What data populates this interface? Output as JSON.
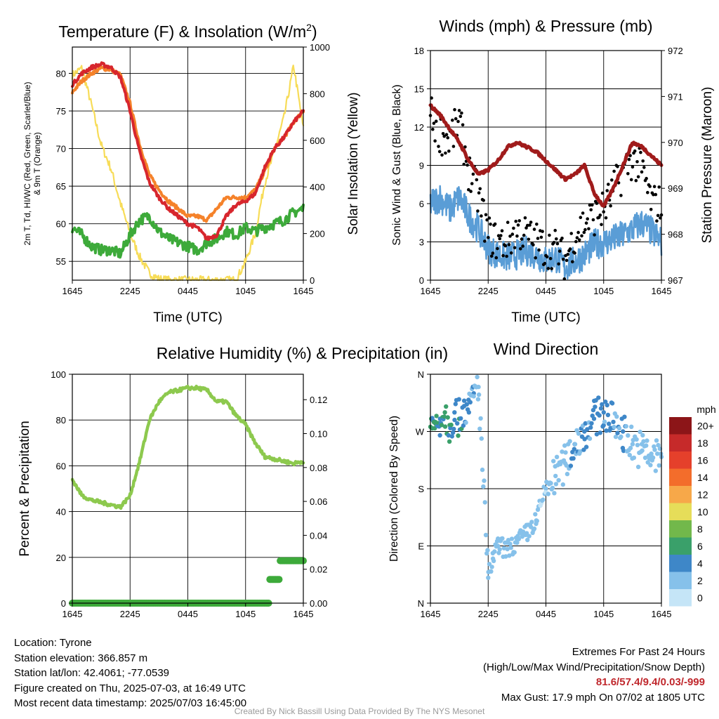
{
  "colors": {
    "temp": "#d7262d",
    "dewpoint": "#3daa3a",
    "heat_index": "#d7262d",
    "temp_9m": "#f5822a",
    "insolation": "#f7dc58",
    "wind": "#5a9dd6",
    "gust": "#000000",
    "pressure": "#a01b1b",
    "rh": "#8dc94e",
    "precip": "#3daa3a"
  },
  "chart_data": [
    {
      "type": "line",
      "title": "Temperature (F) & Insolation (W/m²)",
      "xlabel": "Time (UTC)",
      "ylabel": "2m T, Td, HI/WC (Red, Green, Scarlet/Blue) & 9m T (Orange)",
      "ylabel_lines": [
        "2m T, Td, HI/WC (Red, Green, Scarlet/Blue)",
        "& 9m T (Orange)"
      ],
      "y2label": "Solar Insolation (Yellow)",
      "ylim": [
        52.5,
        83.5
      ],
      "y2lim": [
        0,
        1000
      ],
      "xticks": [
        "1645",
        "2245",
        "0445",
        "1045",
        "1645"
      ],
      "yticks": [
        55,
        60,
        65,
        70,
        75,
        80
      ],
      "y2ticks": [
        0,
        200,
        400,
        600,
        800,
        1000
      ],
      "x_hours_from_start": [
        0,
        1,
        2,
        3,
        4,
        5,
        6,
        7,
        8,
        9,
        10,
        11,
        12,
        13,
        14,
        15,
        16,
        17,
        18,
        19,
        20,
        21,
        22,
        23,
        24
      ],
      "series": [
        {
          "name": "2m T",
          "axis": "left",
          "values": [
            78.5,
            80.0,
            80.8,
            81.2,
            80.8,
            79.5,
            75.0,
            69.5,
            65.5,
            63.5,
            62.0,
            61.0,
            60.0,
            59.5,
            58.0,
            58.5,
            61.0,
            62.5,
            63.0,
            64.0,
            67.5,
            70.0,
            71.5,
            73.5,
            75.0
          ]
        },
        {
          "name": "9m T",
          "axis": "left",
          "values": [
            77.5,
            79.0,
            80.0,
            80.7,
            80.5,
            79.8,
            76.0,
            70.5,
            66.5,
            64.5,
            63.0,
            62.0,
            61.0,
            61.0,
            60.5,
            62.0,
            63.5,
            63.5,
            63.5,
            64.5,
            67.0,
            70.0,
            71.5,
            73.5,
            75.0
          ]
        },
        {
          "name": "Td",
          "axis": "left",
          "values": [
            59.5,
            58.5,
            57.0,
            56.5,
            56.5,
            56.0,
            58.5,
            60.5,
            61.0,
            59.0,
            58.0,
            57.5,
            57.0,
            56.5,
            57.5,
            58.0,
            59.0,
            58.5,
            59.5,
            59.0,
            59.5,
            60.0,
            60.5,
            61.5,
            62.0
          ]
        },
        {
          "name": "Insolation",
          "axis": "right",
          "values": [
            880,
            910,
            750,
            580,
            480,
            330,
            200,
            100,
            30,
            5,
            0,
            0,
            0,
            0,
            0,
            0,
            0,
            0,
            80,
            200,
            420,
            550,
            700,
            920,
            650
          ]
        }
      ]
    },
    {
      "type": "line",
      "title": "Winds (mph) & Pressure (mb)",
      "xlabel": "Time (UTC)",
      "ylabel": "Sonic Wind & Gust (Blue, Black)",
      "y2label": "Station Pressure (Maroon)",
      "ylim": [
        0,
        18
      ],
      "y2lim": [
        967,
        972
      ],
      "xticks": [
        "1645",
        "2245",
        "0445",
        "1045",
        "1645"
      ],
      "yticks": [
        0,
        3,
        6,
        9,
        12,
        15,
        18
      ],
      "y2ticks": [
        967,
        968,
        969,
        970,
        971,
        972
      ],
      "x_hours_from_start": [
        0,
        1,
        2,
        3,
        4,
        5,
        6,
        7,
        8,
        9,
        10,
        11,
        12,
        13,
        14,
        15,
        16,
        17,
        18,
        19,
        20,
        21,
        22,
        23,
        24
      ],
      "series": [
        {
          "name": "Sonic Wind",
          "axis": "left",
          "values": [
            6.0,
            6.5,
            5.5,
            6.5,
            5.0,
            4.0,
            2.5,
            2.0,
            1.8,
            2.0,
            2.3,
            2.0,
            1.5,
            1.8,
            1.0,
            1.5,
            2.0,
            2.8,
            3.0,
            3.2,
            3.5,
            4.0,
            4.5,
            3.8,
            3.0
          ]
        },
        {
          "name": "Gust",
          "axis": "left",
          "values": [
            13.0,
            11.5,
            11.0,
            12.5,
            8.5,
            6.5,
            3.5,
            3.0,
            3.0,
            4.0,
            3.5,
            3.0,
            2.5,
            2.5,
            1.5,
            3.5,
            4.5,
            5.0,
            5.5,
            7.0,
            8.5,
            9.5,
            8.5,
            6.0,
            6.0
          ]
        },
        {
          "name": "Station Pressure",
          "axis": "right",
          "values": [
            970.8,
            970.6,
            970.3,
            970.0,
            969.6,
            969.3,
            969.4,
            969.6,
            969.9,
            970.0,
            969.9,
            969.8,
            969.6,
            969.4,
            969.2,
            969.3,
            969.5,
            968.9,
            968.6,
            969.0,
            969.5,
            970.0,
            969.9,
            969.7,
            969.5
          ]
        }
      ]
    },
    {
      "type": "line",
      "title": "Relative Humidity (%) & Precipitation (in)",
      "ylabel": "Percent & Precipitation",
      "ylim": [
        0,
        100
      ],
      "y2lim": [
        0,
        0.135
      ],
      "xticks": [
        "1645",
        "2245",
        "0445",
        "1045",
        "1645"
      ],
      "yticks": [
        0,
        20,
        40,
        60,
        80,
        100
      ],
      "y2ticks": [
        "0.00",
        "0.02",
        "0.04",
        "0.06",
        "0.08",
        "0.10",
        "0.12"
      ],
      "x_hours_from_start": [
        0,
        1,
        2,
        3,
        4,
        5,
        6,
        7,
        8,
        9,
        10,
        11,
        12,
        13,
        14,
        15,
        16,
        17,
        18,
        19,
        20,
        21,
        22,
        23,
        24
      ],
      "series": [
        {
          "name": "Relative Humidity",
          "axis": "left",
          "values": [
            54,
            47,
            45,
            44,
            43,
            42,
            47,
            62,
            80,
            88,
            92,
            93,
            94,
            94,
            93,
            88,
            88,
            82,
            78,
            70,
            64,
            63,
            62,
            61,
            62
          ]
        },
        {
          "name": "Precipitation",
          "axis": "right",
          "values": [
            0,
            0,
            0,
            0,
            0,
            0,
            0,
            0,
            0,
            0,
            0,
            0,
            0,
            0,
            0,
            0,
            0,
            0,
            0,
            0,
            0,
            0.014,
            0.025,
            0.025,
            0.025
          ]
        }
      ]
    },
    {
      "type": "scatter",
      "title": "Wind Direction",
      "ylabel": "Direction (Colored By Speed)",
      "yticks": [
        "N",
        "E",
        "S",
        "W",
        "N"
      ],
      "xticks": [
        "1645",
        "2245",
        "0445",
        "1045",
        "1645"
      ],
      "colorbar_label": "mph",
      "colorbar_ticks": [
        "0",
        "2",
        "4",
        "6",
        "8",
        "10",
        "12",
        "14",
        "16",
        "18",
        "20+"
      ],
      "colorbar_colors": [
        "#c5e5f7",
        "#86c1ea",
        "#3e87c8",
        "#3aa06a",
        "#72b84b",
        "#e6dd59",
        "#f7a849",
        "#f36d2b",
        "#e5402b",
        "#c62a2a",
        "#8c1518"
      ],
      "points": [
        {
          "x": 0.2,
          "y": 275,
          "speed": 5
        },
        {
          "x": 0.5,
          "y": 285,
          "speed": 6
        },
        {
          "x": 1.0,
          "y": 290,
          "speed": 4
        },
        {
          "x": 1.5,
          "y": 300,
          "speed": 6
        },
        {
          "x": 2.0,
          "y": 280,
          "speed": 5
        },
        {
          "x": 2.5,
          "y": 300,
          "speed": 4
        },
        {
          "x": 3.0,
          "y": 290,
          "speed": 5
        },
        {
          "x": 3.5,
          "y": 310,
          "speed": 4
        },
        {
          "x": 4.0,
          "y": 300,
          "speed": 3
        },
        {
          "x": 4.5,
          "y": 330,
          "speed": 3
        },
        {
          "x": 5.0,
          "y": 340,
          "speed": 2
        },
        {
          "x": 6.0,
          "y": 40,
          "speed": 2
        },
        {
          "x": 6.5,
          "y": 70,
          "speed": 2
        },
        {
          "x": 7.0,
          "y": 90,
          "speed": 2
        },
        {
          "x": 8.0,
          "y": 85,
          "speed": 2
        },
        {
          "x": 9.0,
          "y": 95,
          "speed": 2
        },
        {
          "x": 10.0,
          "y": 110,
          "speed": 2
        },
        {
          "x": 11.0,
          "y": 130,
          "speed": 2
        },
        {
          "x": 12.0,
          "y": 180,
          "speed": 1
        },
        {
          "x": 13.0,
          "y": 200,
          "speed": 2
        },
        {
          "x": 14.0,
          "y": 220,
          "speed": 2
        },
        {
          "x": 15.0,
          "y": 250,
          "speed": 3
        },
        {
          "x": 16.0,
          "y": 270,
          "speed": 3
        },
        {
          "x": 17.0,
          "y": 290,
          "speed": 4
        },
        {
          "x": 18.0,
          "y": 300,
          "speed": 4
        },
        {
          "x": 19.0,
          "y": 285,
          "speed": 3
        },
        {
          "x": 20.0,
          "y": 270,
          "speed": 3
        },
        {
          "x": 21.0,
          "y": 250,
          "speed": 2
        },
        {
          "x": 22.0,
          "y": 240,
          "speed": 2
        },
        {
          "x": 23.0,
          "y": 230,
          "speed": 2
        },
        {
          "x": 24.0,
          "y": 230,
          "speed": 2
        }
      ]
    }
  ],
  "info": {
    "location": "Location: Tyrone",
    "elevation": "Station elevation: 366.857 m",
    "latlon": "Station lat/lon: 42.4061; -77.0539",
    "created": "Figure created on Thu, 2025-07-03, at 16:49 UTC",
    "recent": "Most recent data timestamp: 2025/07/03 16:45:00"
  },
  "extremes": {
    "title": "Extremes For Past 24 Hours",
    "subtitle": "(High/Low/Max Wind/Precipitation/Snow Depth)",
    "values": "81.6/57.4/9.4/0.03/-999",
    "max_gust": "Max Gust: 17.9 mph On 07/02 at 1805 UTC"
  },
  "credit": "Created By Nick Bassill Using Data Provided By The NYS Mesonet"
}
